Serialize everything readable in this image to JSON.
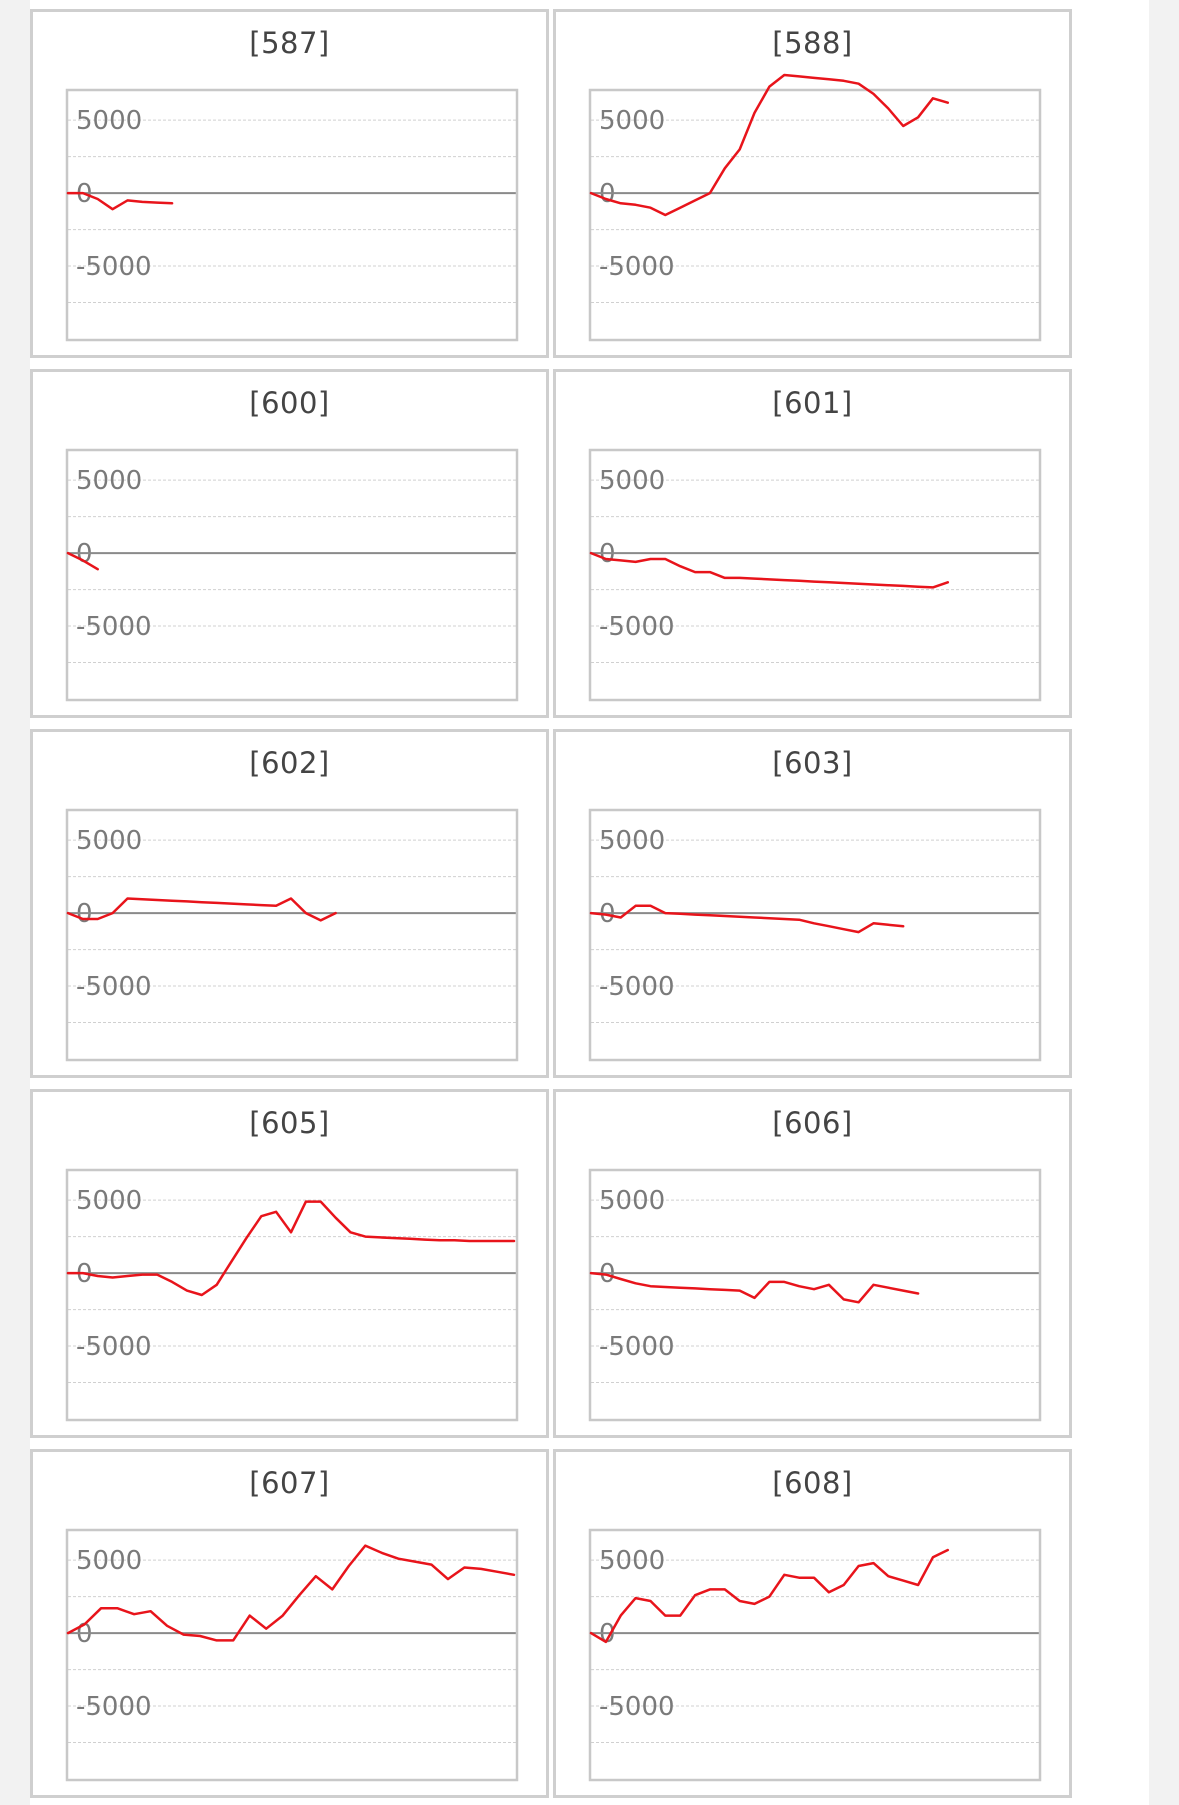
{
  "colors": {
    "line": "#e8141b",
    "zero_line": "#8a8a8a",
    "grid": "#d0d0d0",
    "frame": "#c8c8c8",
    "tick_text": "#7a7a7a"
  },
  "charts": [
    {
      "title": "[587]"
    },
    {
      "title": "[588]"
    },
    {
      "title": "[600]"
    },
    {
      "title": "[601]"
    },
    {
      "title": "[602]"
    },
    {
      "title": "[603]"
    },
    {
      "title": "[605]"
    },
    {
      "title": "[606]"
    },
    {
      "title": "[607]"
    },
    {
      "title": "[608]"
    }
  ],
  "chart_data": [
    {
      "type": "line",
      "title": "[587]",
      "yticks": [
        "5000",
        "0",
        "-5000"
      ],
      "ylim": [
        -10000,
        7000
      ],
      "xmax": 30,
      "grid": true,
      "x": [
        0,
        1,
        2,
        3,
        4,
        5,
        6,
        7
      ],
      "y": [
        0,
        0,
        -400,
        -1100,
        -500,
        -600,
        -650,
        -700
      ]
    },
    {
      "type": "line",
      "title": "[588]",
      "yticks": [
        "5000",
        "0",
        "-5000"
      ],
      "ylim": [
        -10000,
        7000
      ],
      "xmax": 30,
      "grid": true,
      "x": [
        0,
        1,
        2,
        3,
        4,
        5,
        6,
        7,
        8,
        9,
        10,
        11,
        12,
        13,
        14,
        15,
        16,
        17,
        18,
        19,
        20,
        21,
        22,
        23,
        24
      ],
      "y": [
        0,
        -400,
        -700,
        -800,
        -1000,
        -1500,
        -1000,
        -500,
        0,
        1700,
        3000,
        5500,
        7300,
        8100,
        8000,
        7900,
        7800,
        7700,
        7500,
        6800,
        5800,
        4600,
        5200,
        6500,
        6200
      ]
    },
    {
      "type": "line",
      "title": "[600]",
      "yticks": [
        "5000",
        "0",
        "-5000"
      ],
      "ylim": [
        -10000,
        7000
      ],
      "xmax": 30,
      "grid": true,
      "x": [
        0,
        1,
        2
      ],
      "y": [
        0,
        -500,
        -1100
      ]
    },
    {
      "type": "line",
      "title": "[601]",
      "yticks": [
        "5000",
        "0",
        "-5000"
      ],
      "ylim": [
        -10000,
        7000
      ],
      "xmax": 30,
      "grid": true,
      "x": [
        0,
        1,
        2,
        3,
        4,
        5,
        6,
        7,
        8,
        9,
        10,
        11,
        12,
        13,
        14,
        15,
        16,
        17,
        18,
        19,
        20,
        21,
        22,
        23,
        24
      ],
      "y": [
        0,
        -400,
        -500,
        -600,
        -400,
        -400,
        -900,
        -1300,
        -1300,
        -1700,
        -1700,
        -1750,
        -1800,
        -1850,
        -1900,
        -1950,
        -2000,
        -2050,
        -2100,
        -2150,
        -2200,
        -2250,
        -2300,
        -2350,
        -2000
      ]
    },
    {
      "type": "line",
      "title": "[602]",
      "yticks": [
        "5000",
        "0",
        "-5000"
      ],
      "ylim": [
        -10000,
        7000
      ],
      "xmax": 30,
      "grid": true,
      "x": [
        0,
        1,
        2,
        3,
        4,
        5,
        6,
        7,
        8,
        9,
        10,
        11,
        12,
        13,
        14,
        15,
        16,
        17,
        18
      ],
      "y": [
        0,
        -400,
        -400,
        0,
        1000,
        950,
        900,
        850,
        800,
        750,
        700,
        650,
        600,
        550,
        500,
        1000,
        0,
        -500,
        0
      ]
    },
    {
      "type": "line",
      "title": "[603]",
      "yticks": [
        "5000",
        "0",
        "-5000"
      ],
      "ylim": [
        -10000,
        7000
      ],
      "xmax": 30,
      "grid": true,
      "x": [
        0,
        1,
        2,
        3,
        4,
        5,
        6,
        7,
        8,
        9,
        10,
        11,
        12,
        13,
        14,
        15,
        16,
        17,
        18,
        19,
        20,
        21
      ],
      "y": [
        0,
        -100,
        -300,
        500,
        500,
        0,
        -50,
        -100,
        -150,
        -200,
        -250,
        -300,
        -350,
        -400,
        -450,
        -700,
        -900,
        -1100,
        -1300,
        -700,
        -800,
        -900
      ]
    },
    {
      "type": "line",
      "title": "[605]",
      "yticks": [
        "5000",
        "0",
        "-5000"
      ],
      "ylim": [
        -10000,
        7000
      ],
      "xmax": 30,
      "grid": true,
      "x": [
        0,
        1,
        2,
        3,
        4,
        5,
        6,
        7,
        8,
        9,
        10,
        11,
        12,
        13,
        14,
        15,
        16,
        17,
        18,
        19,
        20,
        21,
        22,
        23,
        24,
        25,
        26,
        27,
        28,
        29,
        30
      ],
      "y": [
        0,
        0,
        -200,
        -300,
        -200,
        -100,
        -100,
        -600,
        -1200,
        -1500,
        -800,
        800,
        2400,
        3900,
        4200,
        2800,
        4900,
        4900,
        3800,
        2800,
        2500,
        2450,
        2400,
        2350,
        2300,
        2250,
        2250,
        2200,
        2200,
        2200,
        2200
      ]
    },
    {
      "type": "line",
      "title": "[606]",
      "yticks": [
        "5000",
        "0",
        "-5000"
      ],
      "ylim": [
        -10000,
        7000
      ],
      "xmax": 30,
      "grid": true,
      "x": [
        0,
        1,
        2,
        3,
        4,
        5,
        6,
        7,
        8,
        9,
        10,
        11,
        12,
        13,
        14,
        15,
        16,
        17,
        18,
        19,
        20,
        21,
        22
      ],
      "y": [
        0,
        -100,
        -400,
        -700,
        -900,
        -950,
        -1000,
        -1050,
        -1100,
        -1150,
        -1200,
        -1700,
        -600,
        -600,
        -900,
        -1100,
        -800,
        -1800,
        -2000,
        -800,
        -1000,
        -1200,
        -1400
      ]
    },
    {
      "type": "line",
      "title": "[607]",
      "yticks": [
        "5000",
        "0",
        "-5000"
      ],
      "ylim": [
        -10000,
        7000
      ],
      "xmax": 27,
      "grid": true,
      "x": [
        0,
        1,
        2,
        3,
        4,
        5,
        6,
        7,
        8,
        9,
        10,
        11,
        12,
        13,
        14,
        15,
        16,
        17,
        18,
        19,
        20,
        21,
        22,
        23,
        24,
        25,
        26,
        27
      ],
      "y": [
        0,
        600,
        1700,
        1700,
        1300,
        1500,
        500,
        -100,
        -200,
        -500,
        -500,
        1200,
        300,
        1200,
        2600,
        3900,
        3000,
        4600,
        6000,
        5500,
        5100,
        4900,
        4700,
        3700,
        4500,
        4400,
        4200,
        4000
      ]
    },
    {
      "type": "line",
      "title": "[608]",
      "yticks": [
        "5000",
        "0",
        "-5000"
      ],
      "ylim": [
        -10000,
        7000
      ],
      "xmax": 30,
      "grid": true,
      "x": [
        0,
        1,
        2,
        3,
        4,
        5,
        6,
        7,
        8,
        9,
        10,
        11,
        12,
        13,
        14,
        15,
        16,
        17,
        18,
        19,
        20,
        21,
        22,
        23,
        24
      ],
      "y": [
        0,
        -600,
        1200,
        2400,
        2200,
        1200,
        1200,
        2600,
        3000,
        3000,
        2200,
        2000,
        2500,
        4000,
        3800,
        3800,
        2800,
        3300,
        4600,
        4800,
        3900,
        3600,
        3300,
        5200,
        5700
      ]
    }
  ]
}
